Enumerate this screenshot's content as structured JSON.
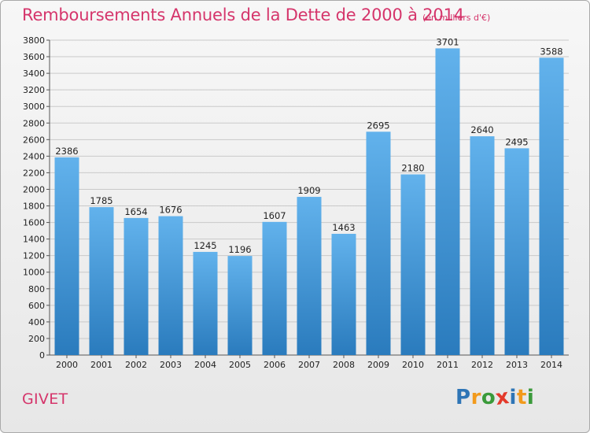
{
  "header": {
    "title": "Remboursements Annuels de la Dette de 2000 à 2014",
    "unit": "(en milliers d'€)"
  },
  "footer": {
    "city": "GIVET",
    "logo": "Proxiti"
  },
  "colors": {
    "title": "#d5356b",
    "bar_light": "#62b2ec",
    "bar_dark": "#2a7bbd",
    "grid": "#c9c9c9",
    "logo_letters": [
      "#2e75b6",
      "#f29a1c",
      "#3a9a3a",
      "#e43a2b",
      "#2e75b6",
      "#f29a1c",
      "#3a9a3a"
    ]
  },
  "chart_data": {
    "type": "bar",
    "title": "Remboursements Annuels de la Dette de 2000 à 2014",
    "unit": "(en milliers d'€)",
    "categories": [
      "2000",
      "2001",
      "2002",
      "2003",
      "2004",
      "2005",
      "2006",
      "2007",
      "2008",
      "2009",
      "2010",
      "2011",
      "2012",
      "2013",
      "2014"
    ],
    "values": [
      2386,
      1785,
      1654,
      1676,
      1245,
      1196,
      1607,
      1909,
      1463,
      2695,
      2180,
      3701,
      2640,
      2495,
      3588
    ],
    "ylim": [
      0,
      3800
    ],
    "yticks": [
      0,
      200,
      400,
      600,
      800,
      1000,
      1200,
      1400,
      1600,
      1800,
      2000,
      2200,
      2400,
      2600,
      2800,
      3000,
      3200,
      3400,
      3600,
      3800
    ],
    "grid": true,
    "data_labels": true
  }
}
